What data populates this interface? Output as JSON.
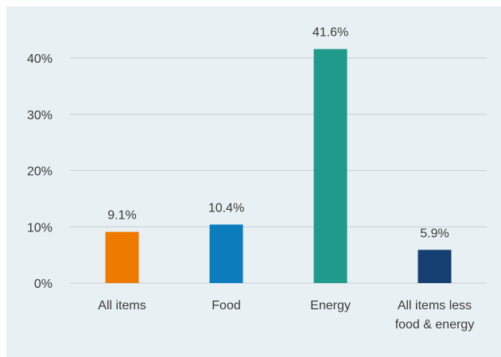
{
  "chart_data": {
    "type": "bar",
    "title": "",
    "xlabel": "",
    "ylabel": "",
    "categories": [
      [
        "All items"
      ],
      [
        "Food"
      ],
      [
        "Energy"
      ],
      [
        "All items less",
        "food & energy"
      ]
    ],
    "values": [
      9.1,
      10.4,
      41.6,
      5.9
    ],
    "data_labels": [
      "9.1%",
      "10.4%",
      "41.6%",
      "5.9%"
    ],
    "colors": [
      "#ee7a00",
      "#0b7dbd",
      "#1f9a8b",
      "#143f70"
    ],
    "ylim": [
      0,
      40
    ],
    "yticks": [
      0,
      10,
      20,
      30,
      40
    ],
    "ytick_labels": [
      "0%",
      "10%",
      "20%",
      "30%",
      "40%"
    ],
    "grid": true,
    "legend": "none"
  },
  "style": {
    "background": "#e8f0f3",
    "grid_color": "#c9cdd0",
    "text_color": "#3b3b3b"
  }
}
